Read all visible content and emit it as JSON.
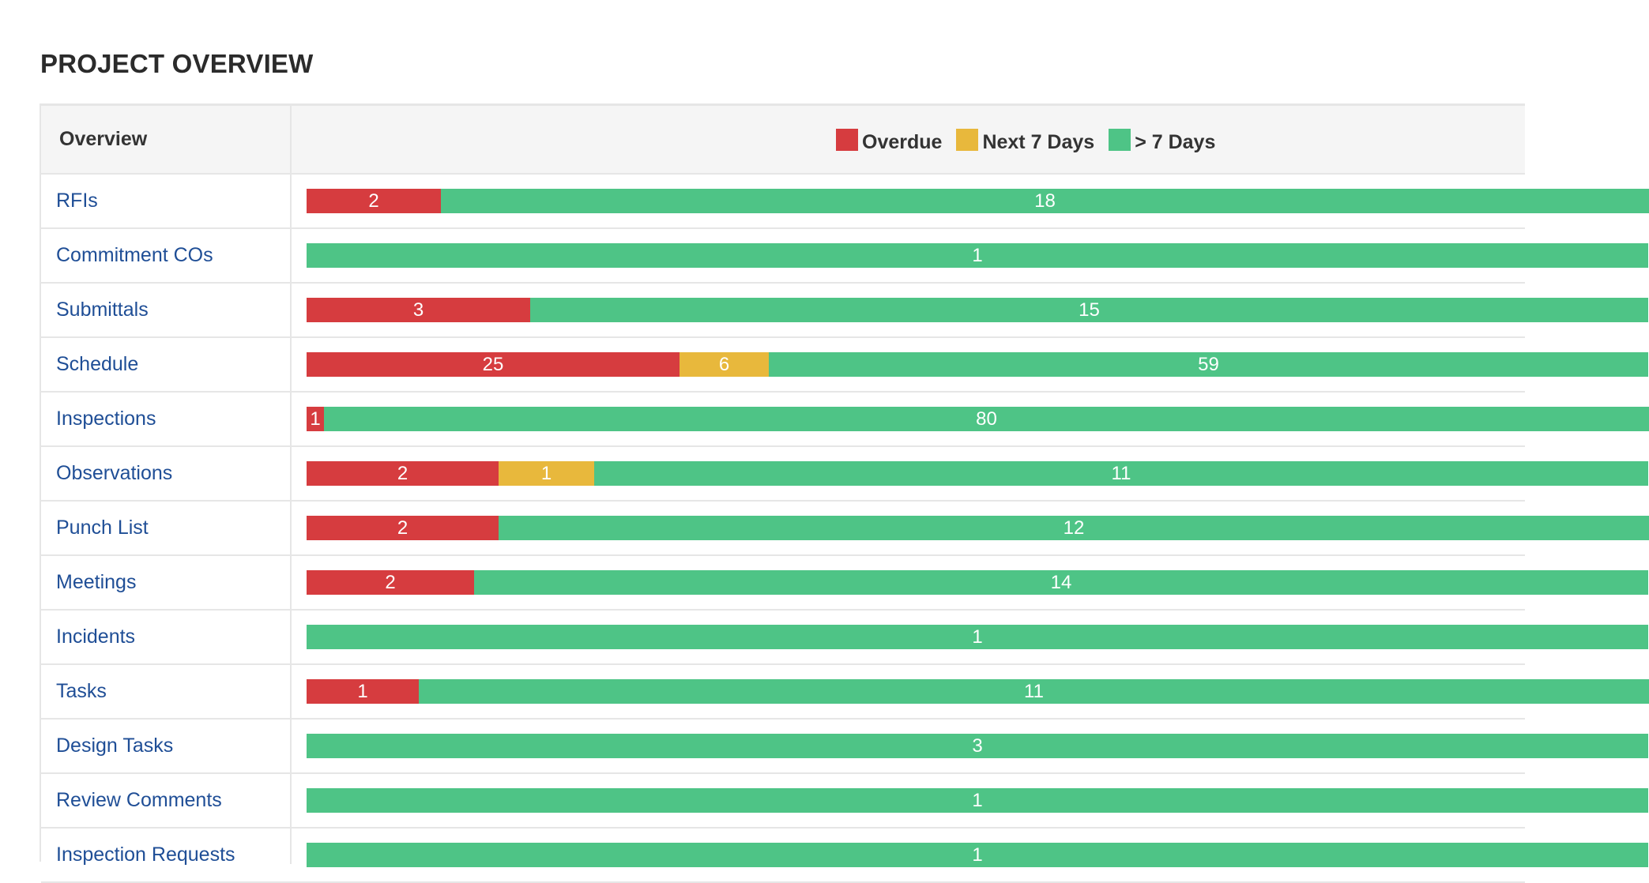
{
  "page": {
    "title": "PROJECT OVERVIEW"
  },
  "colors": {
    "overdue": "#d63c3f",
    "next_7_days": "#e8b83c",
    "more_than_7_days": "#4ec486",
    "label_link": "#1f4e96"
  },
  "table": {
    "header_label": "Overview",
    "legend": [
      {
        "key": "overdue",
        "label": "Overdue"
      },
      {
        "key": "next_7_days",
        "label": "Next 7 Days"
      },
      {
        "key": "more_than_7_days",
        "label": "> 7 Days"
      }
    ],
    "full_scale_note": "bars extend beyond right edge of screenshot",
    "rows": [
      {
        "label": "RFIs",
        "overdue": 2,
        "next_7_days": null,
        "more_than_7_days": 18
      },
      {
        "label": "Commitment COs",
        "overdue": null,
        "next_7_days": null,
        "more_than_7_days": 1
      },
      {
        "label": "Submittals",
        "overdue": 3,
        "next_7_days": null,
        "more_than_7_days": 15
      },
      {
        "label": "Schedule",
        "overdue": 25,
        "next_7_days": 6,
        "more_than_7_days": 59
      },
      {
        "label": "Inspections",
        "overdue": 1,
        "next_7_days": null,
        "more_than_7_days": 80
      },
      {
        "label": "Observations",
        "overdue": 2,
        "next_7_days": 1,
        "more_than_7_days": 11
      },
      {
        "label": "Punch List",
        "overdue": 2,
        "next_7_days": null,
        "more_than_7_days": 12
      },
      {
        "label": "Meetings",
        "overdue": 2,
        "next_7_days": null,
        "more_than_7_days": 14
      },
      {
        "label": "Incidents",
        "overdue": null,
        "next_7_days": null,
        "more_than_7_days": 1
      },
      {
        "label": "Tasks",
        "overdue": 1,
        "next_7_days": null,
        "more_than_7_days": 11
      },
      {
        "label": "Design Tasks",
        "overdue": null,
        "next_7_days": null,
        "more_than_7_days": 3
      },
      {
        "label": "Review Comments",
        "overdue": null,
        "next_7_days": null,
        "more_than_7_days": 1
      },
      {
        "label": "Inspection Requests",
        "overdue": null,
        "next_7_days": null,
        "more_than_7_days": 1
      }
    ]
  }
}
